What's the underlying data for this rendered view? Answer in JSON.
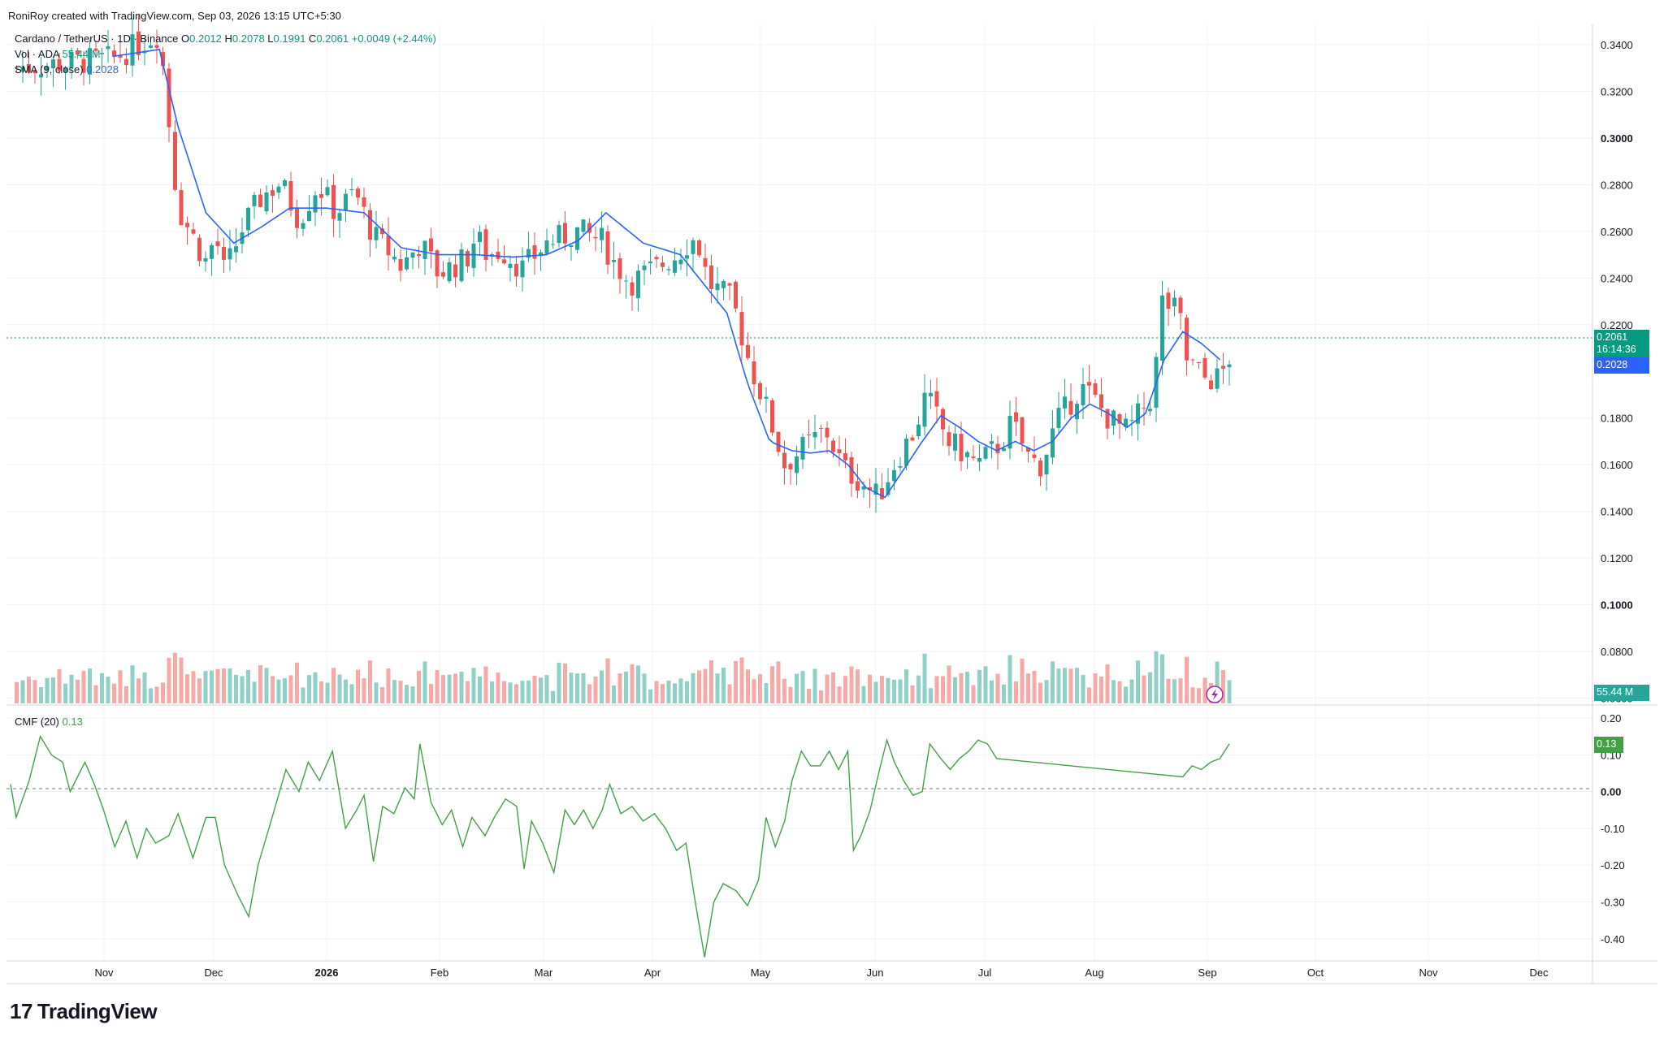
{
  "header": {
    "text": "RoniRoy created with TradingView.com, Sep 03, 2026 13:15 UTC+5:30"
  },
  "legend": {
    "symbol": "Cardano / TetherUS · 1D · Binance",
    "o_label": "O",
    "o": "0.2012",
    "h_label": "H",
    "h": "0.2078",
    "l_label": "L",
    "l": "0.1991",
    "c_label": "C",
    "c": "0.2061",
    "change": "+0.0049 (+2.44%)",
    "vol_label": "Vol · ADA",
    "vol": "55.44 M",
    "sma_label": "SMA (9, close)",
    "sma": "0.2028",
    "cmf_label": "CMF (20)",
    "cmf": "0.13"
  },
  "price_tags": {
    "price": "0.2061",
    "countdown": "16:14:36",
    "sma": "0.2028",
    "vol": "55.44 M",
    "cmf": "0.13"
  },
  "brand": {
    "logo": "17",
    "name": "TradingView"
  },
  "colors": {
    "up": "#26a69a",
    "down": "#ef5350",
    "sma": "#2962ff",
    "cmf": "#43a047",
    "grid": "#f0f3fa"
  },
  "chart_data": {
    "type": "candlestick",
    "price_axis": {
      "ticks": [
        "0.3400",
        "0.3200",
        "0.3000",
        "0.2800",
        "0.2600",
        "0.2400",
        "0.2200",
        "0.1800",
        "0.1600",
        "0.1400",
        "0.1200",
        "0.1000",
        "0.0800",
        "0.0600"
      ],
      "bold": [
        "0.3000",
        "0.1000"
      ],
      "range": [
        0.057,
        0.347
      ]
    },
    "time_axis": {
      "labels": [
        "Nov",
        "Dec",
        "2026",
        "Feb",
        "Mar",
        "Apr",
        "May",
        "Jun",
        "Jul",
        "Aug",
        "Sep",
        "Oct",
        "Nov",
        "Dec"
      ],
      "bold": [
        "2026"
      ]
    },
    "cmf_axis": {
      "ticks": [
        "0.20",
        "0.10",
        "0.00",
        "-0.10",
        "-0.20",
        "-0.30",
        "-0.40"
      ],
      "bold": [
        "0.00"
      ],
      "range": [
        -0.46,
        0.22
      ]
    },
    "close_path": [
      [
        0.0,
        0.33
      ],
      [
        5.5,
        0.334
      ],
      [
        8.0,
        0.345
      ],
      [
        9.0,
        0.27
      ],
      [
        10.5,
        0.247
      ],
      [
        11.0,
        0.258
      ],
      [
        11.5,
        0.242
      ],
      [
        12.5,
        0.262
      ],
      [
        13.5,
        0.275
      ],
      [
        14.5,
        0.281
      ],
      [
        15.5,
        0.265
      ],
      [
        16.5,
        0.28
      ],
      [
        17.5,
        0.268
      ],
      [
        18.5,
        0.277
      ],
      [
        19.5,
        0.258
      ],
      [
        20.5,
        0.25
      ],
      [
        21.0,
        0.245
      ],
      [
        22.0,
        0.255
      ],
      [
        23.0,
        0.242
      ],
      [
        24.5,
        0.248
      ],
      [
        25.0,
        0.258
      ],
      [
        25.6,
        0.25
      ],
      [
        26.4,
        0.252
      ],
      [
        27.5,
        0.244
      ],
      [
        28.8,
        0.255
      ],
      [
        30.5,
        0.26
      ],
      [
        31.8,
        0.256
      ],
      [
        32.4,
        0.247
      ],
      [
        33.3,
        0.238
      ],
      [
        34.8,
        0.245
      ],
      [
        35.8,
        0.25
      ],
      [
        36.6,
        0.257
      ],
      [
        37.0,
        0.253
      ],
      [
        37.5,
        0.238
      ],
      [
        38.8,
        0.23
      ],
      [
        39.7,
        0.204
      ],
      [
        40.5,
        0.187
      ],
      [
        41.6,
        0.16
      ],
      [
        42.6,
        0.167
      ],
      [
        43.8,
        0.175
      ],
      [
        44.8,
        0.158
      ],
      [
        45.8,
        0.152
      ],
      [
        46.6,
        0.146
      ],
      [
        47.6,
        0.162
      ],
      [
        48.6,
        0.175
      ],
      [
        49.2,
        0.19
      ],
      [
        50.4,
        0.17
      ],
      [
        51.2,
        0.165
      ],
      [
        52.0,
        0.16
      ],
      [
        53.3,
        0.17
      ],
      [
        53.8,
        0.178
      ],
      [
        54.8,
        0.162
      ],
      [
        55.4,
        0.16
      ],
      [
        56.2,
        0.178
      ],
      [
        57.5,
        0.193
      ],
      [
        58.0,
        0.19
      ],
      [
        59.0,
        0.18
      ],
      [
        60.0,
        0.174
      ],
      [
        61.4,
        0.19
      ],
      [
        61.9,
        0.23
      ],
      [
        62.8,
        0.225
      ],
      [
        63.2,
        0.205
      ],
      [
        64.2,
        0.197
      ],
      [
        65.0,
        0.197
      ],
      [
        65.5,
        0.206
      ]
    ],
    "sma_path": [
      [
        5.5,
        0.335
      ],
      [
        8.0,
        0.338
      ],
      [
        9.0,
        0.305
      ],
      [
        10.5,
        0.268
      ],
      [
        12.0,
        0.255
      ],
      [
        13.5,
        0.262
      ],
      [
        15.0,
        0.27
      ],
      [
        17.0,
        0.27
      ],
      [
        19.0,
        0.268
      ],
      [
        21.0,
        0.253
      ],
      [
        23.0,
        0.25
      ],
      [
        25.0,
        0.25
      ],
      [
        27.0,
        0.249
      ],
      [
        28.8,
        0.25
      ],
      [
        30.5,
        0.256
      ],
      [
        32.0,
        0.268
      ],
      [
        34.0,
        0.255
      ],
      [
        36.0,
        0.25
      ],
      [
        37.0,
        0.24
      ],
      [
        38.5,
        0.225
      ],
      [
        39.6,
        0.195
      ],
      [
        40.8,
        0.17
      ],
      [
        42.0,
        0.166
      ],
      [
        43.0,
        0.165
      ],
      [
        44.0,
        0.166
      ],
      [
        45.0,
        0.16
      ],
      [
        46.0,
        0.15
      ],
      [
        47.0,
        0.146
      ],
      [
        48.0,
        0.158
      ],
      [
        49.0,
        0.17
      ],
      [
        50.0,
        0.181
      ],
      [
        51.0,
        0.176
      ],
      [
        52.0,
        0.17
      ],
      [
        53.0,
        0.166
      ],
      [
        54.0,
        0.17
      ],
      [
        55.0,
        0.166
      ],
      [
        56.0,
        0.17
      ],
      [
        57.0,
        0.18
      ],
      [
        58.0,
        0.186
      ],
      [
        59.0,
        0.182
      ],
      [
        60.0,
        0.176
      ],
      [
        61.0,
        0.182
      ],
      [
        62.0,
        0.205
      ],
      [
        63.0,
        0.217
      ],
      [
        64.0,
        0.212
      ],
      [
        65.0,
        0.205
      ]
    ],
    "candle_count": 200,
    "visible_weeks": [
      0.0,
      68.0
    ],
    "last_volume_m": 55.44,
    "cmf_path": [
      [
        0.0,
        0.02
      ],
      [
        0.3,
        -0.07
      ],
      [
        1.0,
        0.03
      ],
      [
        1.6,
        0.15
      ],
      [
        2.2,
        0.1
      ],
      [
        2.8,
        0.08
      ],
      [
        3.2,
        0.0
      ],
      [
        3.6,
        0.04
      ],
      [
        4.0,
        0.08
      ],
      [
        4.5,
        0.02
      ],
      [
        5.0,
        -0.05
      ],
      [
        5.6,
        -0.15
      ],
      [
        6.2,
        -0.08
      ],
      [
        6.8,
        -0.18
      ],
      [
        7.3,
        -0.1
      ],
      [
        7.8,
        -0.14
      ],
      [
        8.5,
        -0.12
      ],
      [
        9.0,
        -0.06
      ],
      [
        9.8,
        -0.18
      ],
      [
        10.5,
        -0.07
      ],
      [
        11.0,
        -0.07
      ],
      [
        11.5,
        -0.2
      ],
      [
        12.2,
        -0.28
      ],
      [
        12.8,
        -0.34
      ],
      [
        13.3,
        -0.2
      ],
      [
        14.0,
        -0.08
      ],
      [
        14.8,
        0.06
      ],
      [
        15.5,
        0.0
      ],
      [
        16.0,
        0.08
      ],
      [
        16.6,
        0.03
      ],
      [
        17.3,
        0.11
      ],
      [
        18.0,
        -0.1
      ],
      [
        18.6,
        -0.05
      ],
      [
        19.0,
        -0.01
      ],
      [
        19.5,
        -0.19
      ],
      [
        20.0,
        -0.04
      ],
      [
        20.6,
        -0.06
      ],
      [
        21.2,
        0.01
      ],
      [
        21.7,
        -0.02
      ],
      [
        22.0,
        0.13
      ],
      [
        22.6,
        -0.03
      ],
      [
        23.2,
        -0.09
      ],
      [
        23.7,
        -0.05
      ],
      [
        24.3,
        -0.15
      ],
      [
        24.8,
        -0.07
      ],
      [
        25.5,
        -0.12
      ],
      [
        26.0,
        -0.07
      ],
      [
        26.6,
        -0.02
      ],
      [
        27.2,
        -0.04
      ],
      [
        27.6,
        -0.21
      ],
      [
        28.0,
        -0.08
      ],
      [
        28.6,
        -0.14
      ],
      [
        29.2,
        -0.22
      ],
      [
        29.8,
        -0.05
      ],
      [
        30.3,
        -0.09
      ],
      [
        30.8,
        -0.05
      ],
      [
        31.3,
        -0.1
      ],
      [
        31.8,
        -0.05
      ],
      [
        32.2,
        0.02
      ],
      [
        32.8,
        -0.06
      ],
      [
        33.4,
        -0.04
      ],
      [
        34.0,
        -0.08
      ],
      [
        34.6,
        -0.06
      ],
      [
        35.2,
        -0.1
      ],
      [
        35.8,
        -0.16
      ],
      [
        36.3,
        -0.14
      ],
      [
        36.8,
        -0.3
      ],
      [
        37.3,
        -0.45
      ],
      [
        37.8,
        -0.3
      ],
      [
        38.3,
        -0.25
      ],
      [
        39.0,
        -0.27
      ],
      [
        39.6,
        -0.31
      ],
      [
        40.2,
        -0.24
      ],
      [
        40.6,
        -0.07
      ],
      [
        41.1,
        -0.15
      ],
      [
        41.6,
        -0.08
      ],
      [
        42.0,
        0.03
      ],
      [
        42.5,
        0.11
      ],
      [
        43.0,
        0.07
      ],
      [
        43.5,
        0.07
      ],
      [
        44.0,
        0.11
      ],
      [
        44.5,
        0.06
      ],
      [
        45.0,
        0.11
      ],
      [
        45.3,
        -0.16
      ],
      [
        45.7,
        -0.12
      ],
      [
        46.2,
        -0.05
      ],
      [
        46.7,
        0.06
      ],
      [
        47.1,
        0.14
      ],
      [
        47.5,
        0.08
      ],
      [
        48.0,
        0.03
      ],
      [
        48.5,
        -0.01
      ],
      [
        49.0,
        0.0
      ],
      [
        49.4,
        0.13
      ],
      [
        50.0,
        0.09
      ],
      [
        50.5,
        0.06
      ],
      [
        51.0,
        0.09
      ],
      [
        51.5,
        0.11
      ],
      [
        52.0,
        0.14
      ],
      [
        52.5,
        0.13
      ],
      [
        53.0,
        0.09
      ]
    ],
    "cmf_last": [
      [
        63.0,
        0.04
      ],
      [
        63.5,
        0.07
      ],
      [
        64.0,
        0.06
      ],
      [
        64.5,
        0.08
      ],
      [
        65.0,
        0.09
      ],
      [
        65.5,
        0.13
      ]
    ]
  }
}
